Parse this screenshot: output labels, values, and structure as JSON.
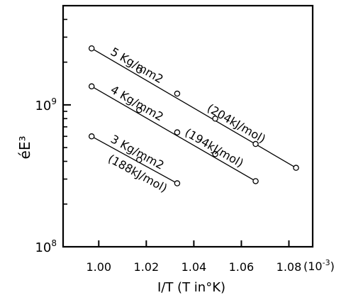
{
  "chart_data": {
    "type": "scatter",
    "xlabel": "I/T (T in°K)",
    "ylabel": "éE³",
    "x_multiplier_label": "(10",
    "x_multiplier_exp": "-3",
    "x_multiplier_close": ")",
    "xlim": [
      0.985,
      1.09
    ],
    "ylim": [
      100000000,
      5000000000
    ],
    "y_scale": "log",
    "x_tick_values": [
      1.0,
      1.02,
      1.04,
      1.06,
      1.08
    ],
    "x_tick_labels": [
      "1.00",
      "1.02",
      "1.04",
      "1.06",
      "1.08"
    ],
    "y_tick_labels": [
      {
        "value": 1000000000,
        "base": "10",
        "exp": "9"
      },
      {
        "value": 100000000,
        "base": "10",
        "exp": "8"
      }
    ],
    "y_minor_ticks": [
      200000000,
      300000000,
      400000000,
      500000000,
      600000000,
      700000000,
      800000000,
      900000000,
      2000000000,
      3000000000,
      4000000000
    ],
    "grid": false,
    "series": [
      {
        "name": "5 Kg/mm2",
        "energy_label": "(204kJ/mol)",
        "x": [
          0.997,
          1.017,
          1.033,
          1.049,
          1.066,
          1.083
        ],
        "y": [
          2500000000,
          1750000000,
          1200000000,
          800000000,
          530000000,
          360000000
        ]
      },
      {
        "name": "4 Kg/mm2",
        "energy_label": "(194kJ/mol)",
        "x": [
          0.997,
          1.017,
          1.033,
          1.049,
          1.066
        ],
        "y": [
          1350000000,
          920000000,
          640000000,
          450000000,
          290000000
        ]
      },
      {
        "name": "3 Kg/mm2",
        "energy_label": "(188kJ/mol)",
        "x": [
          0.997,
          1.017,
          1.033
        ],
        "y": [
          600000000,
          410000000,
          280000000
        ]
      }
    ]
  }
}
